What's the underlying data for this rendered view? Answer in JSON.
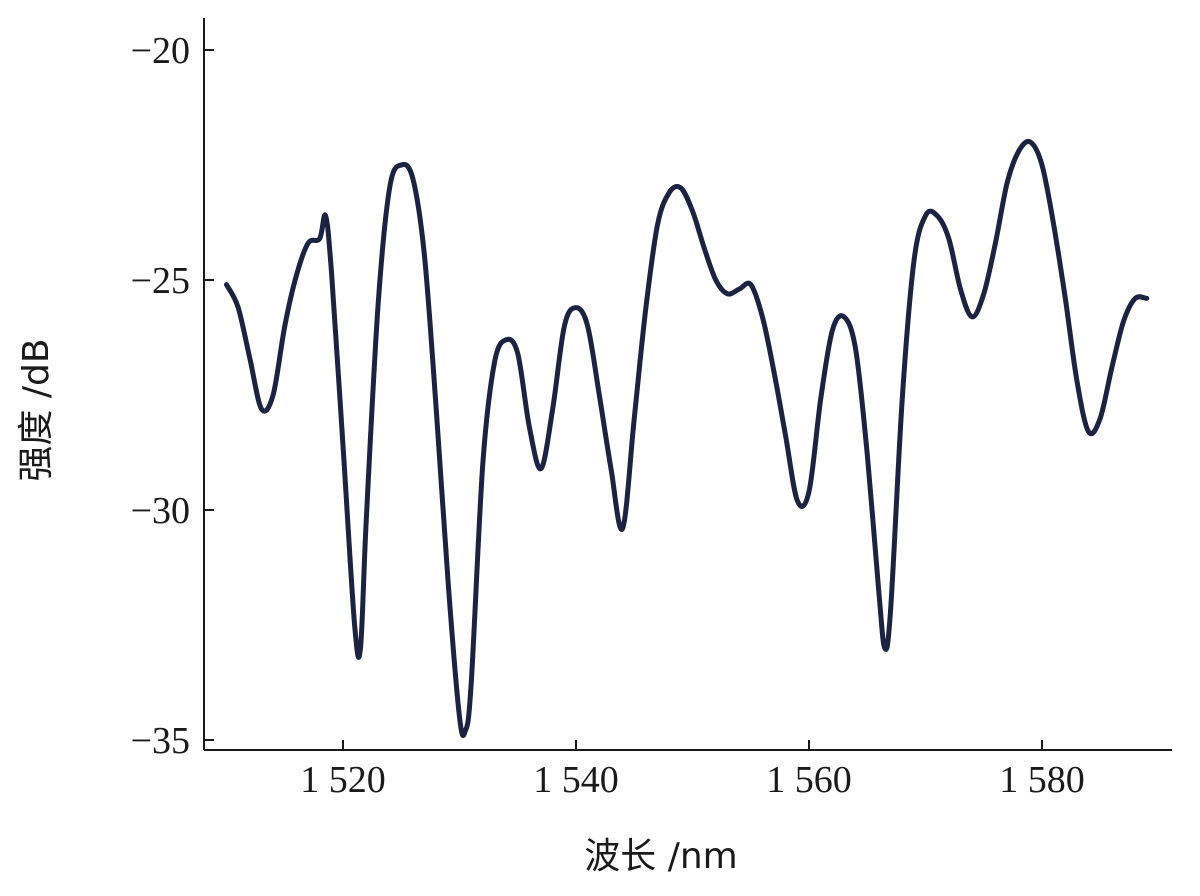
{
  "chart_data": {
    "type": "line",
    "title": "",
    "xlabel": "波长 /nm",
    "ylabel": "强度 /dB",
    "xlim": [
      1510,
      1590
    ],
    "ylim": [
      -35,
      -19
    ],
    "x_ticks": [
      1520,
      1540,
      1560,
      1580
    ],
    "x_tick_labels": [
      "1 520",
      "1 540",
      "1 560",
      "1 580"
    ],
    "y_ticks": [
      -20,
      -25,
      -30,
      -35
    ],
    "y_tick_labels": [
      "−20",
      "−25",
      "−30",
      "−35"
    ],
    "grid": false,
    "legend": "none",
    "line_color": "#1c2340",
    "series": [
      {
        "x": [
          1510,
          1511,
          1512,
          1513,
          1514,
          1515,
          1516,
          1517,
          1518,
          1518.5,
          1519,
          1520,
          1521,
          1521.5,
          1522,
          1523,
          1524,
          1525,
          1526,
          1527,
          1528,
          1529,
          1530,
          1530.5,
          1531,
          1532,
          1533,
          1534,
          1535,
          1536,
          1537,
          1538,
          1539,
          1540,
          1541,
          1542,
          1543,
          1544,
          1545,
          1546,
          1547,
          1548,
          1549,
          1550,
          1551,
          1552,
          1553,
          1554,
          1555,
          1556,
          1557,
          1558,
          1559,
          1560,
          1561,
          1562,
          1563,
          1564,
          1565,
          1566,
          1566.5,
          1567,
          1568,
          1569,
          1570,
          1571,
          1572,
          1573,
          1574,
          1575,
          1576,
          1577,
          1578,
          1579,
          1580,
          1581,
          1582,
          1583,
          1584,
          1585,
          1586,
          1587,
          1588,
          1589
        ],
        "y": [
          -25.1,
          -25.6,
          -26.7,
          -27.8,
          -27.5,
          -26.0,
          -24.9,
          -24.2,
          -24.1,
          -23.6,
          -24.8,
          -28.6,
          -32.5,
          -33.0,
          -30.2,
          -25.6,
          -23.0,
          -22.5,
          -22.8,
          -24.5,
          -27.8,
          -31.5,
          -34.5,
          -34.8,
          -33.8,
          -29.0,
          -26.8,
          -26.3,
          -26.6,
          -28.2,
          -29.1,
          -27.8,
          -26.0,
          -25.6,
          -26.0,
          -27.5,
          -29.1,
          -30.4,
          -28.0,
          -25.6,
          -23.8,
          -23.1,
          -23.0,
          -23.5,
          -24.3,
          -25.0,
          -25.3,
          -25.2,
          -25.1,
          -25.8,
          -27.0,
          -28.4,
          -29.8,
          -29.6,
          -27.6,
          -26.1,
          -25.8,
          -26.5,
          -28.8,
          -31.8,
          -33.0,
          -32.2,
          -27.6,
          -24.6,
          -23.6,
          -23.6,
          -24.1,
          -25.2,
          -25.8,
          -25.3,
          -24.2,
          -22.9,
          -22.2,
          -22.0,
          -22.5,
          -23.8,
          -25.4,
          -27.2,
          -28.3,
          -28.0,
          -26.9,
          -25.9,
          -25.4,
          -25.4
        ]
      }
    ]
  }
}
